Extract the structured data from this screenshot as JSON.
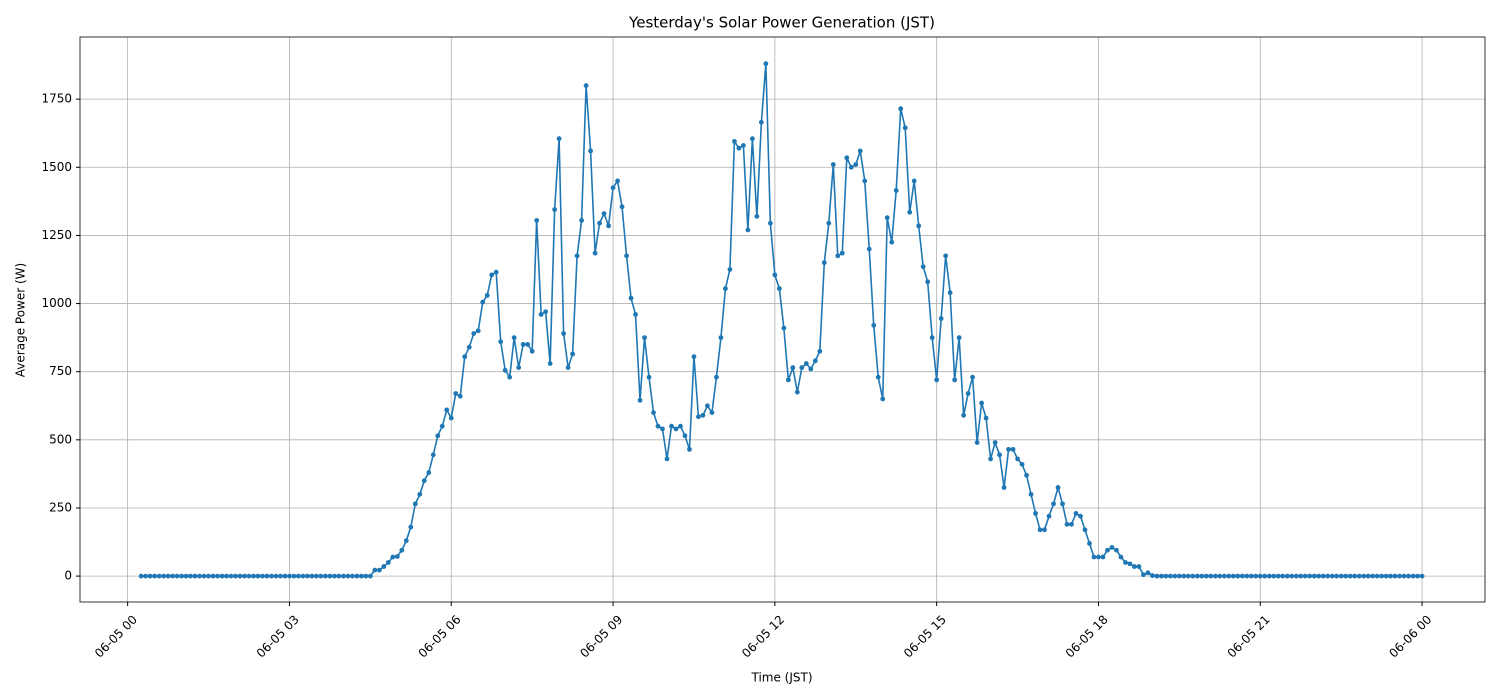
{
  "chart_data": {
    "type": "line",
    "title": "Yesterday's Solar Power Generation (JST)",
    "x_label": "Time (JST)",
    "y_label": "Average Power (W)",
    "x": [
      "06-05 00:15",
      "06-05 00:20",
      "06-05 00:25",
      "06-05 00:30",
      "06-05 00:35",
      "06-05 00:40",
      "06-05 00:45",
      "06-05 00:50",
      "06-05 00:55",
      "06-05 01:00",
      "06-05 01:05",
      "06-05 01:10",
      "06-05 01:15",
      "06-05 01:20",
      "06-05 01:25",
      "06-05 01:30",
      "06-05 01:35",
      "06-05 01:40",
      "06-05 01:45",
      "06-05 01:50",
      "06-05 01:55",
      "06-05 02:00",
      "06-05 02:05",
      "06-05 02:10",
      "06-05 02:15",
      "06-05 02:20",
      "06-05 02:25",
      "06-05 02:30",
      "06-05 02:35",
      "06-05 02:40",
      "06-05 02:45",
      "06-05 02:50",
      "06-05 02:55",
      "06-05 03:00",
      "06-05 03:05",
      "06-05 03:10",
      "06-05 03:15",
      "06-05 03:20",
      "06-05 03:25",
      "06-05 03:30",
      "06-05 03:35",
      "06-05 03:40",
      "06-05 03:45",
      "06-05 03:50",
      "06-05 03:55",
      "06-05 04:00",
      "06-05 04:05",
      "06-05 04:10",
      "06-05 04:15",
      "06-05 04:20",
      "06-05 04:25",
      "06-05 04:30",
      "06-05 04:35",
      "06-05 04:40",
      "06-05 04:45",
      "06-05 04:50",
      "06-05 04:55",
      "06-05 05:00",
      "06-05 05:05",
      "06-05 05:10",
      "06-05 05:15",
      "06-05 05:20",
      "06-05 05:25",
      "06-05 05:30",
      "06-05 05:35",
      "06-05 05:40",
      "06-05 05:45",
      "06-05 05:50",
      "06-05 05:55",
      "06-05 06:00",
      "06-05 06:05",
      "06-05 06:10",
      "06-05 06:15",
      "06-05 06:20",
      "06-05 06:25",
      "06-05 06:30",
      "06-05 06:35",
      "06-05 06:40",
      "06-05 06:45",
      "06-05 06:50",
      "06-05 06:55",
      "06-05 07:00",
      "06-05 07:05",
      "06-05 07:10",
      "06-05 07:15",
      "06-05 07:20",
      "06-05 07:25",
      "06-05 07:30",
      "06-05 07:35",
      "06-05 07:40",
      "06-05 07:45",
      "06-05 07:50",
      "06-05 07:55",
      "06-05 08:00",
      "06-05 08:05",
      "06-05 08:10",
      "06-05 08:15",
      "06-05 08:20",
      "06-05 08:25",
      "06-05 08:30",
      "06-05 08:35",
      "06-05 08:40",
      "06-05 08:45",
      "06-05 08:50",
      "06-05 08:55",
      "06-05 09:00",
      "06-05 09:05",
      "06-05 09:10",
      "06-05 09:15",
      "06-05 09:20",
      "06-05 09:25",
      "06-05 09:30",
      "06-05 09:35",
      "06-05 09:40",
      "06-05 09:45",
      "06-05 09:50",
      "06-05 09:55",
      "06-05 10:00",
      "06-05 10:05",
      "06-05 10:10",
      "06-05 10:15",
      "06-05 10:20",
      "06-05 10:25",
      "06-05 10:30",
      "06-05 10:35",
      "06-05 10:40",
      "06-05 10:45",
      "06-05 10:50",
      "06-05 10:55",
      "06-05 11:00",
      "06-05 11:05",
      "06-05 11:10",
      "06-05 11:15",
      "06-05 11:20",
      "06-05 11:25",
      "06-05 11:30",
      "06-05 11:35",
      "06-05 11:40",
      "06-05 11:45",
      "06-05 11:50",
      "06-05 11:55",
      "06-05 12:00",
      "06-05 12:05",
      "06-05 12:10",
      "06-05 12:15",
      "06-05 12:20",
      "06-05 12:25",
      "06-05 12:30",
      "06-05 12:35",
      "06-05 12:40",
      "06-05 12:45",
      "06-05 12:50",
      "06-05 12:55",
      "06-05 13:00",
      "06-05 13:05",
      "06-05 13:10",
      "06-05 13:15",
      "06-05 13:20",
      "06-05 13:25",
      "06-05 13:30",
      "06-05 13:35",
      "06-05 13:40",
      "06-05 13:45",
      "06-05 13:50",
      "06-05 13:55",
      "06-05 14:00",
      "06-05 14:05",
      "06-05 14:10",
      "06-05 14:15",
      "06-05 14:20",
      "06-05 14:25",
      "06-05 14:30",
      "06-05 14:35",
      "06-05 14:40",
      "06-05 14:45",
      "06-05 14:50",
      "06-05 14:55",
      "06-05 15:00",
      "06-05 15:05",
      "06-05 15:10",
      "06-05 15:15",
      "06-05 15:20",
      "06-05 15:25",
      "06-05 15:30",
      "06-05 15:35",
      "06-05 15:40",
      "06-05 15:45",
      "06-05 15:50",
      "06-05 15:55",
      "06-05 16:00",
      "06-05 16:05",
      "06-05 16:10",
      "06-05 16:15",
      "06-05 16:20",
      "06-05 16:25",
      "06-05 16:30",
      "06-05 16:35",
      "06-05 16:40",
      "06-05 16:45",
      "06-05 16:50",
      "06-05 16:55",
      "06-05 17:00",
      "06-05 17:05",
      "06-05 17:10",
      "06-05 17:15",
      "06-05 17:20",
      "06-05 17:25",
      "06-05 17:30",
      "06-05 17:35",
      "06-05 17:40",
      "06-05 17:45",
      "06-05 17:50",
      "06-05 17:55",
      "06-05 18:00",
      "06-05 18:05",
      "06-05 18:10",
      "06-05 18:15",
      "06-05 18:20",
      "06-05 18:25",
      "06-05 18:30",
      "06-05 18:35",
      "06-05 18:40",
      "06-05 18:45",
      "06-05 18:50",
      "06-05 18:55",
      "06-05 19:00",
      "06-05 19:05",
      "06-05 19:10",
      "06-05 19:15",
      "06-05 19:20",
      "06-05 19:25",
      "06-05 19:30",
      "06-05 19:35",
      "06-05 19:40",
      "06-05 19:45",
      "06-05 19:50",
      "06-05 19:55",
      "06-05 20:00",
      "06-05 20:05",
      "06-05 20:10",
      "06-05 20:15",
      "06-05 20:20",
      "06-05 20:25",
      "06-05 20:30",
      "06-05 20:35",
      "06-05 20:40",
      "06-05 20:45",
      "06-05 20:50",
      "06-05 20:55",
      "06-05 21:00",
      "06-05 21:05",
      "06-05 21:10",
      "06-05 21:15",
      "06-05 21:20",
      "06-05 21:25",
      "06-05 21:30",
      "06-05 21:35",
      "06-05 21:40",
      "06-05 21:45",
      "06-05 21:50",
      "06-05 21:55",
      "06-05 22:00",
      "06-05 22:05",
      "06-05 22:10",
      "06-05 22:15",
      "06-05 22:20",
      "06-05 22:25",
      "06-05 22:30",
      "06-05 22:35",
      "06-05 22:40",
      "06-05 22:45",
      "06-05 22:50",
      "06-05 22:55",
      "06-05 23:00",
      "06-05 23:05",
      "06-05 23:10",
      "06-05 23:15",
      "06-05 23:20",
      "06-05 23:25",
      "06-05 23:30",
      "06-05 23:35",
      "06-05 23:40",
      "06-05 23:45",
      "06-05 23:50",
      "06-05 23:55",
      "06-06 00:00"
    ],
    "values": [
      0,
      0,
      0,
      0,
      0,
      0,
      0,
      0,
      0,
      0,
      0,
      0,
      0,
      0,
      0,
      0,
      0,
      0,
      0,
      0,
      0,
      0,
      0,
      0,
      0,
      0,
      0,
      0,
      0,
      0,
      0,
      0,
      0,
      0,
      0,
      0,
      0,
      0,
      0,
      0,
      0,
      0,
      0,
      0,
      0,
      0,
      0,
      0,
      0,
      0,
      0,
      0,
      22,
      22,
      35,
      50,
      70,
      72,
      95,
      130,
      180,
      265,
      300,
      350,
      380,
      445,
      515,
      550,
      610,
      580,
      670,
      660,
      805,
      840,
      890,
      900,
      1005,
      1030,
      1105,
      1115,
      860,
      755,
      730,
      875,
      765,
      850,
      850,
      825,
      1305,
      960,
      970,
      780,
      1345,
      1605,
      890,
      765,
      815,
      1175,
      1305,
      1800,
      1560,
      1185,
      1295,
      1330,
      1285,
      1425,
      1450,
      1355,
      1175,
      1020,
      960,
      645,
      875,
      730,
      600,
      550,
      540,
      430,
      550,
      540,
      550,
      515,
      465,
      805,
      585,
      590,
      625,
      600,
      730,
      875,
      1055,
      1125,
      1595,
      1570,
      1580,
      1270,
      1605,
      1320,
      1665,
      1880,
      1295,
      1105,
      1055,
      910,
      720,
      765,
      675,
      765,
      780,
      760,
      790,
      825,
      1150,
      1295,
      1510,
      1175,
      1185,
      1535,
      1500,
      1510,
      1560,
      1450,
      1200,
      920,
      730,
      650,
      1315,
      1225,
      1415,
      1715,
      1645,
      1335,
      1450,
      1285,
      1135,
      1080,
      875,
      720,
      945,
      1175,
      1040,
      720,
      875,
      590,
      670,
      730,
      490,
      635,
      580,
      430,
      490,
      445,
      325,
      465,
      465,
      430,
      410,
      370,
      300,
      230,
      170,
      170,
      220,
      265,
      325,
      265,
      190,
      190,
      230,
      220,
      170,
      120,
      70,
      70,
      70,
      95,
      105,
      95,
      70,
      50,
      45,
      35,
      35,
      5,
      12,
      2,
      0,
      0,
      0,
      0,
      0,
      0,
      0,
      0,
      0,
      0,
      0,
      0,
      0,
      0,
      0,
      0,
      0,
      0,
      0,
      0,
      0,
      0,
      0,
      0,
      0,
      0,
      0,
      0,
      0,
      0,
      0,
      0,
      0,
      0,
      0,
      0,
      0,
      0,
      0,
      0,
      0,
      0,
      0,
      0,
      0,
      0,
      0,
      0,
      0,
      0,
      0,
      0,
      0,
      0,
      0,
      0,
      0,
      0,
      0,
      0
    ],
    "color": "#1f77b4",
    "xlim": [
      "06-04 23:07",
      "06-06 01:10"
    ],
    "xticks": [
      "06-05 00",
      "06-05 03",
      "06-05 06",
      "06-05 09",
      "06-05 12",
      "06-05 15",
      "06-05 18",
      "06-05 21",
      "06-06 00"
    ],
    "ylim": [
      -95,
      1978
    ],
    "yticks": [
      0,
      250,
      500,
      750,
      1000,
      1250,
      1500,
      1750
    ],
    "grid": true,
    "markers": true
  }
}
